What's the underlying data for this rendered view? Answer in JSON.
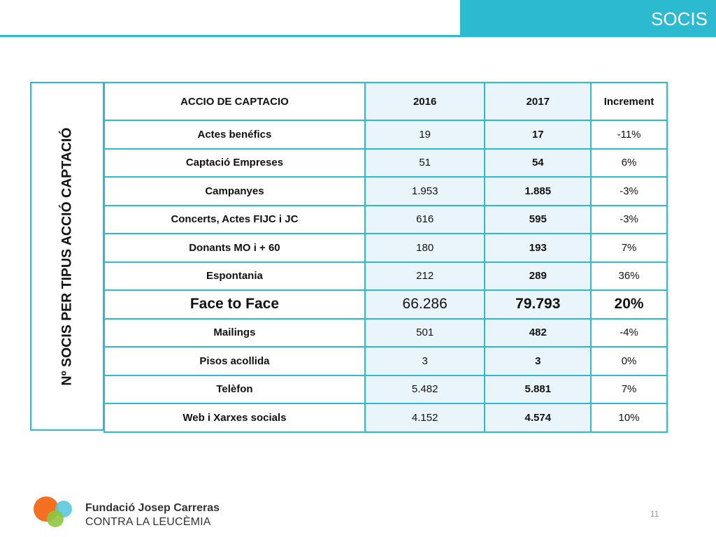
{
  "header": {
    "section_title": "SOCIS"
  },
  "table": {
    "side_label": "Nº SOCIS PER TIPUS ACCIÓ CAPTACIÓ",
    "columns": [
      "ACCIO DE CAPTACIO",
      "2016",
      "2017",
      "Increment"
    ],
    "rows": [
      {
        "action": "Actes benéfics",
        "v2016": "19",
        "v2017": "17",
        "increment": "-11%"
      },
      {
        "action": "Captació Empreses",
        "v2016": "51",
        "v2017": "54",
        "increment": "6%"
      },
      {
        "action": "Campanyes",
        "v2016": "1.953",
        "v2017": "1.885",
        "increment": "-3%"
      },
      {
        "action": "Concerts, Actes FIJC i JC",
        "v2016": "616",
        "v2017": "595",
        "increment": "-3%"
      },
      {
        "action": "Donants MO i + 60",
        "v2016": "180",
        "v2017": "193",
        "increment": "7%"
      },
      {
        "action": "Espontania",
        "v2016": "212",
        "v2017": "289",
        "increment": "36%"
      },
      {
        "action": "Face to Face",
        "v2016": "66.286",
        "v2017": "79.793",
        "increment": "20%"
      },
      {
        "action": "Mailings",
        "v2016": "501",
        "v2017": "482",
        "increment": "-4%"
      },
      {
        "action": "Pisos acollida",
        "v2016": "3",
        "v2017": "3",
        "increment": "0%"
      },
      {
        "action": "Telèfon",
        "v2016": "5.482",
        "v2017": "5.881",
        "increment": "7%"
      },
      {
        "action": "Web i Xarxes socials",
        "v2016": "4.152",
        "v2017": "4.574",
        "increment": "10%"
      }
    ]
  },
  "footer": {
    "logo_line1": "Fundació Josep Carreras",
    "logo_line2": "CONTRA LA LEUCÈMIA",
    "page_number": "11"
  },
  "colors": {
    "accent": "#2bbad0",
    "cell_tint": "#eaf5fb",
    "logo_orange": "#f37021",
    "logo_cyan": "#5bc8dc",
    "logo_green": "#8dc63f"
  }
}
